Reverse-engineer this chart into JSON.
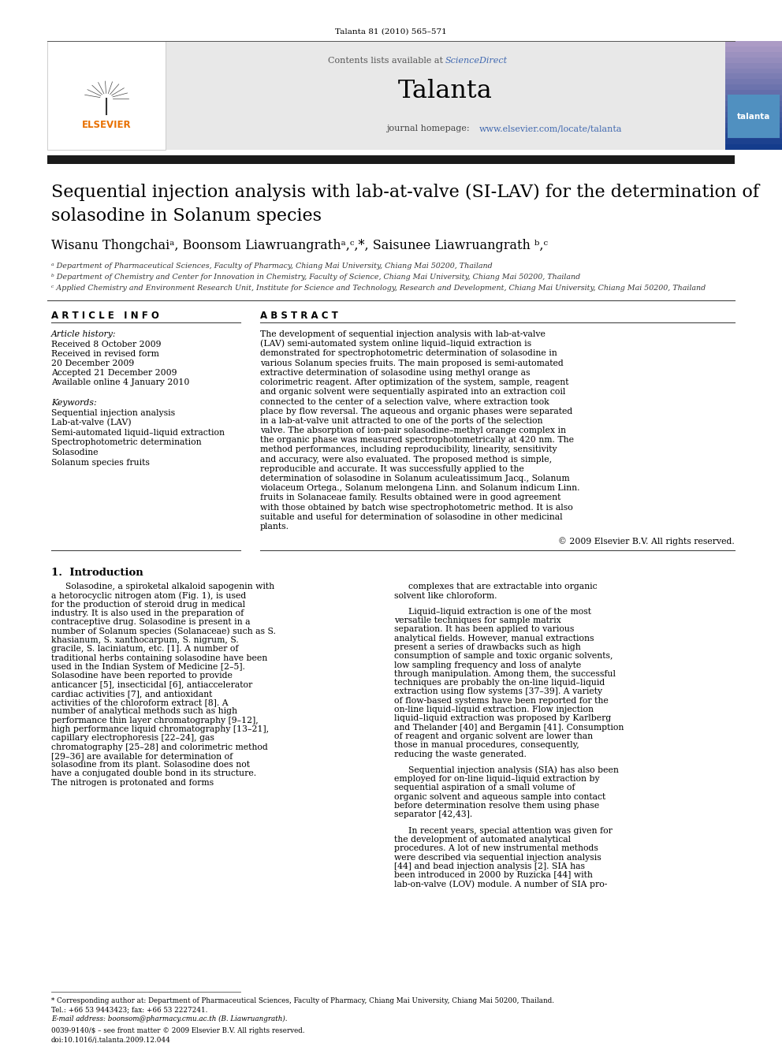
{
  "page_bg": "#ffffff",
  "journal_citation": "Talanta 81 (2010) 565–571",
  "header_bg": "#e8e8e8",
  "sciencedirect_color": "#4169b0",
  "homepage_url_color": "#4169b0",
  "title_bar_color": "#1a1a1a",
  "article_title_line1": "Sequential injection analysis with lab-at-valve (SI-LAV) for the determination of",
  "article_title_line2": "solasodine in Solanum species",
  "authors": "Wisanu Thongchaiᵃ, Boonsom Liawruangrathᵃ,ᶜ,*, Saisunee Liawruangrath ᵇ,ᶜ",
  "affil_a": "ᵃ Department of Pharmaceutical Sciences, Faculty of Pharmacy, Chiang Mai University, Chiang Mai 50200, Thailand",
  "affil_b": "ᵇ Department of Chemistry and Center for Innovation in Chemistry, Faculty of Science, Chiang Mai University, Chiang Mai 50200, Thailand",
  "affil_c": "ᶜ Applied Chemistry and Environment Research Unit, Institute for Science and Technology, Research and Development, Chiang Mai University, Chiang Mai 50200, Thailand",
  "article_info_title": "A R T I C L E   I N F O",
  "abstract_title": "A B S T R A C T",
  "article_history_label": "Article history:",
  "history_items": [
    "Received 8 October 2009",
    "Received in revised form",
    "20 December 2009",
    "Accepted 21 December 2009",
    "Available online 4 January 2010"
  ],
  "keywords_label": "Keywords:",
  "keywords": [
    "Sequential injection analysis",
    "Lab-at-valve (LAV)",
    "Semi-automated liquid–liquid extraction",
    "Spectrophotometric determination",
    "Solasodine",
    "Solanum species fruits"
  ],
  "abstract_text": "The development of sequential injection analysis with lab-at-valve (LAV) semi-automated system online liquid–liquid extraction is demonstrated for spectrophotometric determination of solasodine in various Solanum species fruits. The main proposed is semi-automated extractive determination of solasodine using methyl orange as colorimetric reagent. After optimization of the system, sample, reagent and organic solvent were sequentially aspirated into an extraction coil connected to the center of a selection valve, where extraction took place by flow reversal. The aqueous and organic phases were separated in a lab-at-valve unit attracted to one of the ports of the selection valve. The absorption of ion-pair solasodine–methyl orange complex in the organic phase was measured spectrophotometrically at 420 nm. The method performances, including reproducibility, linearity, sensitivity and accuracy, were also evaluated. The proposed method is simple, reproducible and accurate. It was successfully applied to the determination of solasodine in Solanum aculeatissimum Jacq., Solanum violaceum Ortega., Solanum melongena Linn. and Solanum indicum Linn. fruits in Solanaceae family. Results obtained were in good agreement with those obtained by batch wise spectrophotometric method. It is also suitable and useful for determination of solasodine in other medicinal plants.",
  "copyright": "© 2009 Elsevier B.V. All rights reserved.",
  "section1_title": "1.  Introduction",
  "intro_col1": "Solasodine, a spiroketal alkaloid sapogenin with a hetorocyclic nitrogen atom (Fig. 1), is used for the production of steroid drug in medical industry. It is also used in the preparation of contraceptive drug. Solasodine is present in a number of Solanum species (Solanaceae) such as S. khasianum, S. xanthocarpum, S. nigrum, S. gracile, S. laciniatum, etc. [1]. A number of traditional herbs containing solasodine have been used in the Indian System of Medicine [2–5]. Solasodine have been reported to provide anticancer [5], insecticidal [6], antiaccelerator cardiac activities [7], and antioxidant activities of the chloroform extract [8]. A number of analytical methods such as high performance thin layer chromatography [9–12], high performance liquid chromatography [13–21], capillary electrophoresis [22–24], gas chromatography [25–28] and colorimetric method [29–36] are available for determination of solasodine from its plant. Solasodine does not have a conjugated double bond in its structure. The nitrogen is protonated and forms",
  "intro_col2": "complexes that are extractable into organic solvent like chloroform.\n\nLiquid–liquid extraction is one of the most versatile techniques for sample matrix separation. It has been applied to various analytical fields. However, manual extractions present a series of drawbacks such as high consumption of sample and toxic organic solvents, low sampling frequency and loss of analyte through manipulation. Among them, the successful techniques are probably the on-line liquid–liquid extraction using flow systems [37–39]. A variety of flow-based systems have been reported for the on-line liquid–liquid extraction. Flow injection liquid–liquid extraction was proposed by Karlberg and Thelander [40] and Bergamin [41]. Consumption of reagent and organic solvent are lower than those in manual procedures, consequently, reducing the waste generated.\n\nSequential injection analysis (SIA) has also been employed for on-line liquid–liquid extraction by sequential aspiration of a small volume of organic solvent and aqueous sample into contact before determination resolve them using phase separator [42,43].\n\nIn recent years, special attention was given for the development of automated analytical procedures. A lot of new instrumental methods were described via sequential injection analysis [44] and bead injection analysis [2]. SIA has been introduced in 2000 by Ruzicka [44] with lab-on-valve (LOV) module. A number of SIA pro-",
  "footer_corr": "* Corresponding author at: Department of Pharmaceutical Sciences, Faculty of Pharmacy, Chiang Mai University, Chiang Mai 50200, Thailand.",
  "footer_tel": "Tel.: +66 53 9443423; fax: +66 53 2227241.",
  "footer_email": "E-mail address: boonsom@pharmacy.cmu.ac.th (B. Liawruangrath).",
  "footer_issn": "0039-9140/$ – see front matter © 2009 Elsevier B.V. All rights reserved.",
  "footer_doi": "doi:10.1016/j.talanta.2009.12.044"
}
